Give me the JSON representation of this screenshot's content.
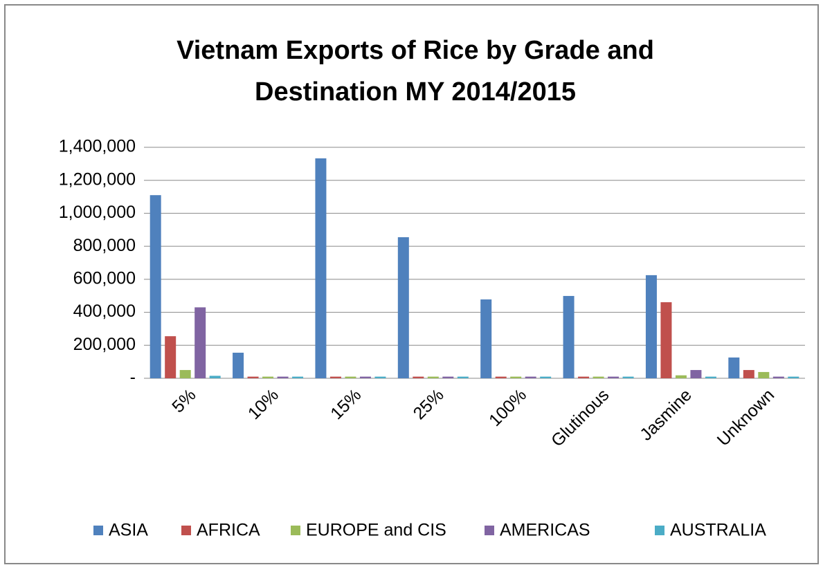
{
  "chart_data": {
    "type": "bar",
    "title": [
      "Vietnam Exports of Rice by Grade and",
      "Destination MY 2014/2015"
    ],
    "categories": [
      "5%",
      "10%",
      "15%",
      "25%",
      "100%",
      "Glutinous",
      "Jasmine",
      "Unknown"
    ],
    "series": [
      {
        "name": "ASIA",
        "color": "#4f81bd",
        "values": [
          1110000,
          155000,
          1333000,
          855000,
          478000,
          499000,
          625000,
          126000
        ]
      },
      {
        "name": "AFRICA",
        "color": "#c0504d",
        "values": [
          255000,
          10000,
          10000,
          10000,
          10000,
          10000,
          461000,
          50000
        ]
      },
      {
        "name": "EUROPE and CIS",
        "color": "#9bbb59",
        "values": [
          50000,
          10000,
          10000,
          10000,
          10000,
          10000,
          18000,
          38000
        ]
      },
      {
        "name": "AMERICAS",
        "color": "#8064a2",
        "values": [
          430000,
          10000,
          10000,
          10000,
          10000,
          10000,
          50000,
          10000
        ]
      },
      {
        "name": "AUSTRALIA",
        "color": "#4bacc6",
        "values": [
          15000,
          10000,
          10000,
          10000,
          10000,
          10000,
          10000,
          10000
        ]
      }
    ],
    "ylim": [
      0,
      1400000
    ],
    "yticks": [
      {
        "value": 0,
        "label": "-"
      },
      {
        "value": 200000,
        "label": "200,000"
      },
      {
        "value": 400000,
        "label": "400,000"
      },
      {
        "value": 600000,
        "label": "600,000"
      },
      {
        "value": 800000,
        "label": "800,000"
      },
      {
        "value": 1000000,
        "label": "1,000,000"
      },
      {
        "value": 1200000,
        "label": "1,200,000"
      },
      {
        "value": 1400000,
        "label": "1,400,000"
      }
    ],
    "grid": true,
    "legend": "bottom"
  }
}
